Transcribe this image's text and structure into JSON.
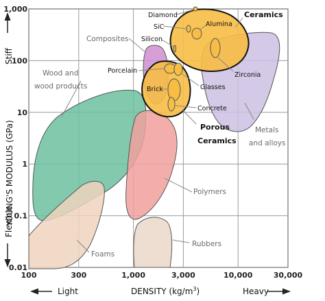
{
  "chart_data": {
    "type": "property-map",
    "xlabel": "DENSITY (kg/m",
    "xlabel_sup": "3",
    "xlabel_end": ")",
    "ylabel": "YOUNG'S MODULUS (GPa)",
    "x_scale": "log",
    "y_scale": "log",
    "xlim": [
      100,
      30000
    ],
    "ylim": [
      0.01,
      1000
    ],
    "x_ticks": [
      100,
      300,
      1000,
      3000,
      10000,
      30000
    ],
    "x_tick_labels": [
      "100",
      "300",
      "1,000",
      "3,000",
      "10,000",
      "30,000"
    ],
    "y_ticks": [
      0.01,
      0.1,
      1,
      10,
      100,
      1000
    ],
    "y_tick_labels": [
      "0.01",
      "0.1",
      "1",
      "10",
      "100",
      "1,000"
    ],
    "x_end_labels": {
      "low": "Light",
      "high": "Heavy"
    },
    "y_end_labels": {
      "low": "Flexible",
      "high": "Stiff"
    },
    "grid": true,
    "colors": {
      "ceramics": "#f7bd45",
      "composites": "#cf8fd0",
      "metals": "#ccc0e2",
      "wood": "#6cbfa0",
      "polymers": "#f1a09d",
      "foams": "#efd3bd",
      "rubbers": "#ead8c9",
      "outline": "#555555"
    },
    "regions": [
      {
        "key": "metals",
        "label": "Metals and alloys",
        "label_lines": [
          "Metals",
          "and alloys"
        ]
      },
      {
        "key": "composites",
        "label": "Composites"
      },
      {
        "key": "wood",
        "label": "Wood and wood products",
        "label_lines": [
          "Wood and",
          "wood products"
        ]
      },
      {
        "key": "polymers",
        "label": "Polymers"
      },
      {
        "key": "foams",
        "label": "Foams"
      },
      {
        "key": "rubbers",
        "label": "Rubbers"
      },
      {
        "key": "ceramics",
        "label": "Ceramics"
      },
      {
        "key": "porous",
        "label": "Porous Ceramics",
        "label_lines": [
          "Porous",
          "Ceramics"
        ]
      }
    ],
    "materials": [
      {
        "name": "Diamond",
        "density": 3500,
        "modulus": 1000
      },
      {
        "name": "SiC",
        "density": 3200,
        "modulus": 420
      },
      {
        "name": "Alumina",
        "density": 3900,
        "modulus": 370
      },
      {
        "name": "Silicon",
        "density": 2330,
        "modulus": 160
      },
      {
        "name": "Porcelain",
        "density": 2400,
        "modulus": 70
      },
      {
        "name": "Glasses",
        "density": 2600,
        "modulus": 70
      },
      {
        "name": "Zirconia",
        "density": 5800,
        "modulus": 200
      },
      {
        "name": "Brick",
        "density": 2200,
        "modulus": 25
      },
      {
        "name": "Concrete",
        "density": 2400,
        "modulus": 25
      }
    ]
  }
}
